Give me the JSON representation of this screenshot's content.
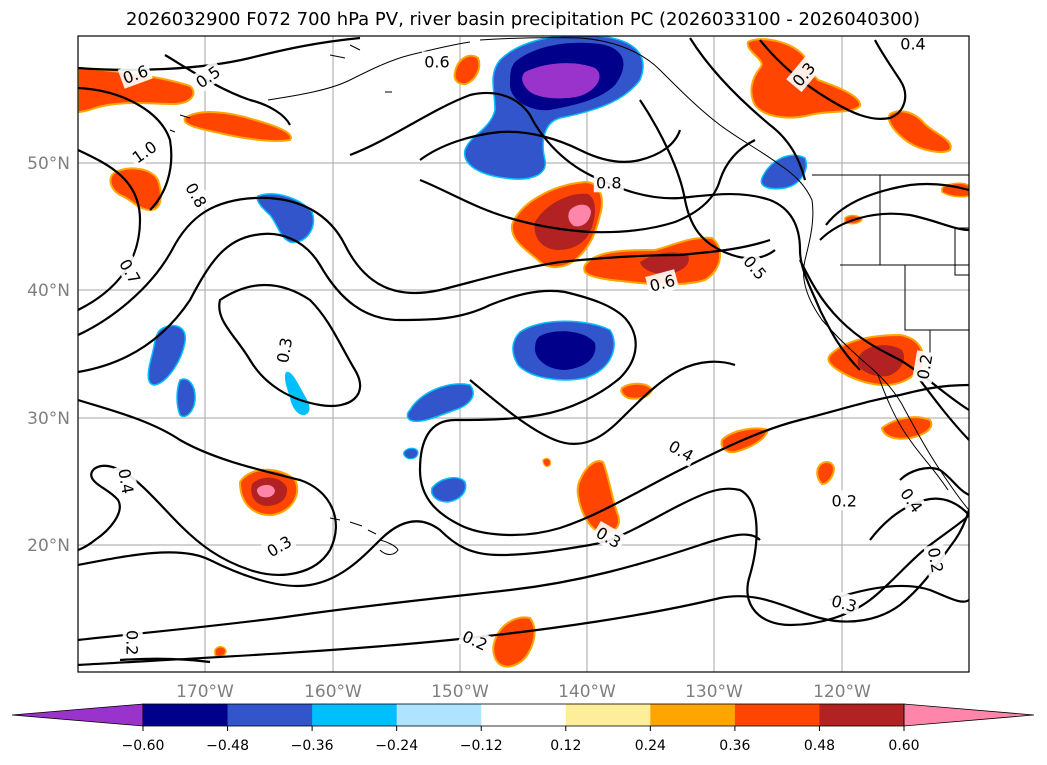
{
  "title": "2026032900 F072 700 hPa PV, river basin precipitation PC (2026033100 - 2026040300)",
  "map": {
    "projection": "PlateCarree",
    "lon_range": [
      -180,
      -110
    ],
    "lat_range": [
      10,
      60
    ],
    "lat_labels": [
      "50°N",
      "40°N",
      "30°N",
      "20°N"
    ],
    "lon_labels": [
      "170°W",
      "160°W",
      "150°W",
      "140°W",
      "130°W",
      "120°W"
    ],
    "lat_ticks": [
      50,
      40,
      30,
      20
    ],
    "lon_ticks": [
      -170,
      -160,
      -150,
      -140,
      -130,
      -120
    ]
  },
  "colorbar": {
    "tick_labels": [
      "−0.60",
      "−0.48",
      "−0.36",
      "−0.24",
      "−0.12",
      "0.12",
      "0.24",
      "0.36",
      "0.48",
      "0.60"
    ],
    "colors": [
      "#9933cc",
      "#00008b",
      "#3355cc",
      "#00bfff",
      "#aee4ff",
      "#ffffff",
      "#ffee99",
      "#ffa500",
      "#ff4500",
      "#b22222",
      "#ff85aa"
    ]
  },
  "contour_labels": [
    {
      "text": "0.6",
      "lon": -175.5,
      "lat": 57.0,
      "rot": 20
    },
    {
      "text": "0.5",
      "lon": -169.8,
      "lat": 56.8,
      "rot": 35
    },
    {
      "text": "1.0",
      "lon": -174.8,
      "lat": 50.9,
      "rot": 35
    },
    {
      "text": "0.8",
      "lon": -170.7,
      "lat": 47.5,
      "rot": -60
    },
    {
      "text": "0.7",
      "lon": -175.9,
      "lat": 41.5,
      "rot": -60
    },
    {
      "text": "0.3",
      "lon": -163.8,
      "lat": 35.3,
      "rot": 80
    },
    {
      "text": "0.4",
      "lon": -176.2,
      "lat": 25.0,
      "rot": -80
    },
    {
      "text": "0.3",
      "lon": -164.2,
      "lat": 19.9,
      "rot": 30
    },
    {
      "text": "0.2",
      "lon": -175.7,
      "lat": 12.3,
      "rot": -90
    },
    {
      "text": "0.6",
      "lon": -151.8,
      "lat": 58.0,
      "rot": 0
    },
    {
      "text": "0.4",
      "lon": -114.4,
      "lat": 59.4,
      "rot": 0
    },
    {
      "text": "0.3",
      "lon": -123.0,
      "lat": 57.0,
      "rot": 50
    },
    {
      "text": "0.8",
      "lon": -138.3,
      "lat": 48.5,
      "rot": 0
    },
    {
      "text": "0.6",
      "lon": -134.1,
      "lat": 40.6,
      "rot": 15
    },
    {
      "text": "0.5",
      "lon": -126.8,
      "lat": 41.8,
      "rot": -50
    },
    {
      "text": "0.4",
      "lon": -132.6,
      "lat": 27.4,
      "rot": -30
    },
    {
      "text": "0.3",
      "lon": -138.3,
      "lat": 20.6,
      "rot": -30
    },
    {
      "text": "0.2",
      "lon": -148.8,
      "lat": 12.5,
      "rot": -25
    },
    {
      "text": "0.2",
      "lon": -119.8,
      "lat": 23.5,
      "rot": 0
    },
    {
      "text": "0.3",
      "lon": -119.8,
      "lat": 15.4,
      "rot": -15
    },
    {
      "text": "0.4",
      "lon": -114.5,
      "lat": 23.5,
      "rot": -55
    },
    {
      "text": "0.2",
      "lon": -113.5,
      "lat": 34.0,
      "rot": 80
    },
    {
      "text": "0.2",
      "lon": -112.6,
      "lat": 18.8,
      "rot": -80
    }
  ]
}
